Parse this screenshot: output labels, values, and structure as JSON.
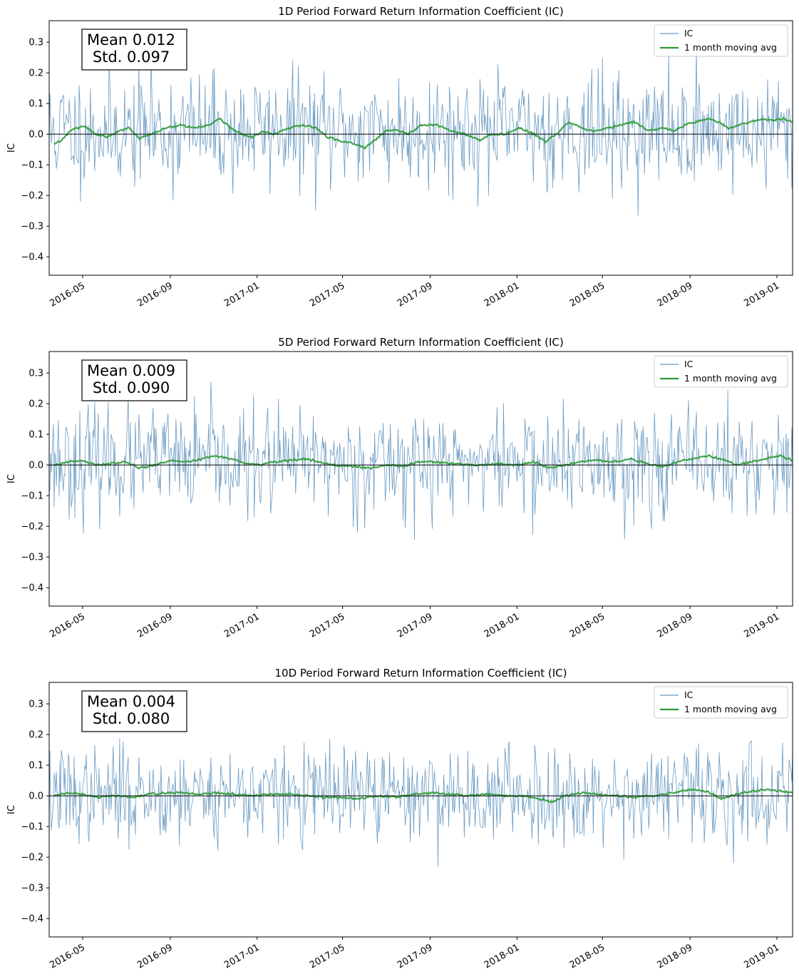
{
  "chart_data": [
    {
      "type": "line",
      "title": "1D Period Forward Return Information Coefficient (IC)",
      "ylabel": "IC",
      "xlabel": "",
      "x_range": [
        "2016-03-15",
        "2019-01-23"
      ],
      "ylim": [
        -0.46,
        0.37
      ],
      "yticks": [
        -0.4,
        -0.3,
        -0.2,
        -0.1,
        0.0,
        0.1,
        0.2,
        0.3
      ],
      "ytick_labels": [
        "−0.4",
        "−0.3",
        "−0.2",
        "−0.1",
        "0.0",
        "0.1",
        "0.2",
        "0.3"
      ],
      "xticks": [
        "2016-05-01",
        "2016-09-01",
        "2017-01-01",
        "2017-05-01",
        "2017-09-01",
        "2018-01-01",
        "2018-05-01",
        "2018-09-01",
        "2019-01-01"
      ],
      "xtick_labels": [
        "2016-05",
        "2016-09",
        "2017-01",
        "2017-05",
        "2017-09",
        "2018-01",
        "2018-05",
        "2018-09",
        "2019-01"
      ],
      "stats": {
        "line1": "Mean 0.012",
        "line2": "Std. 0.097"
      },
      "legend": {
        "position": "upper right",
        "entries": [
          "IC",
          "1 month moving avg"
        ]
      },
      "ic_seed": 11,
      "series": [
        {
          "name": "IC",
          "color": "#4682b4",
          "std": 0.097,
          "mean": 0.012
        },
        {
          "name": "1 month moving avg",
          "color": "#2e9a36",
          "values": [
            [
              "2016-03-22",
              -0.032
            ],
            [
              "2016-04-01",
              -0.02
            ],
            [
              "2016-04-15",
              0.015
            ],
            [
              "2016-05-05",
              0.025
            ],
            [
              "2016-05-20",
              0.0
            ],
            [
              "2016-06-05",
              -0.01
            ],
            [
              "2016-06-20",
              0.01
            ],
            [
              "2016-07-05",
              0.02
            ],
            [
              "2016-07-20",
              -0.015
            ],
            [
              "2016-08-05",
              0.0
            ],
            [
              "2016-08-25",
              0.02
            ],
            [
              "2016-09-15",
              0.03
            ],
            [
              "2016-10-05",
              0.02
            ],
            [
              "2016-10-25",
              0.03
            ],
            [
              "2016-11-10",
              0.05
            ],
            [
              "2016-11-25",
              0.02
            ],
            [
              "2016-12-10",
              0.0
            ],
            [
              "2016-12-25",
              -0.01
            ],
            [
              "2017-01-10",
              0.01
            ],
            [
              "2017-01-25",
              0.0
            ],
            [
              "2017-02-15",
              0.02
            ],
            [
              "2017-03-05",
              0.03
            ],
            [
              "2017-03-25",
              0.02
            ],
            [
              "2017-04-10",
              -0.01
            ],
            [
              "2017-04-25",
              -0.02
            ],
            [
              "2017-05-15",
              -0.03
            ],
            [
              "2017-06-01",
              -0.045
            ],
            [
              "2017-06-15",
              -0.02
            ],
            [
              "2017-07-01",
              0.01
            ],
            [
              "2017-07-15",
              0.015
            ],
            [
              "2017-08-01",
              0.0
            ],
            [
              "2017-08-20",
              0.03
            ],
            [
              "2017-09-10",
              0.03
            ],
            [
              "2017-10-01",
              0.01
            ],
            [
              "2017-10-20",
              0.0
            ],
            [
              "2017-11-10",
              -0.02
            ],
            [
              "2017-11-25",
              0.0
            ],
            [
              "2017-12-15",
              0.0
            ],
            [
              "2018-01-05",
              0.02
            ],
            [
              "2018-01-25",
              0.0
            ],
            [
              "2018-02-10",
              -0.025
            ],
            [
              "2018-02-25",
              0.0
            ],
            [
              "2018-03-15",
              0.04
            ],
            [
              "2018-04-01",
              0.02
            ],
            [
              "2018-04-20",
              0.01
            ],
            [
              "2018-05-10",
              0.02
            ],
            [
              "2018-05-25",
              0.03
            ],
            [
              "2018-06-15",
              0.04
            ],
            [
              "2018-07-05",
              0.01
            ],
            [
              "2018-07-25",
              0.02
            ],
            [
              "2018-08-10",
              0.01
            ],
            [
              "2018-08-25",
              0.03
            ],
            [
              "2018-09-10",
              0.04
            ],
            [
              "2018-09-25",
              0.05
            ],
            [
              "2018-10-10",
              0.04
            ],
            [
              "2018-10-25",
              0.02
            ],
            [
              "2018-11-10",
              0.03
            ],
            [
              "2018-11-25",
              0.04
            ],
            [
              "2018-12-10",
              0.05
            ],
            [
              "2018-12-25",
              0.045
            ],
            [
              "2019-01-10",
              0.05
            ],
            [
              "2019-01-23",
              0.04
            ]
          ]
        }
      ]
    },
    {
      "type": "line",
      "title": "5D Period Forward Return Information Coefficient (IC)",
      "ylabel": "IC",
      "xlabel": "",
      "x_range": [
        "2016-03-15",
        "2019-01-23"
      ],
      "ylim": [
        -0.46,
        0.37
      ],
      "yticks": [
        -0.4,
        -0.3,
        -0.2,
        -0.1,
        0.0,
        0.1,
        0.2,
        0.3
      ],
      "ytick_labels": [
        "−0.4",
        "−0.3",
        "−0.2",
        "−0.1",
        "0.0",
        "0.1",
        "0.2",
        "0.3"
      ],
      "xticks": [
        "2016-05-01",
        "2016-09-01",
        "2017-01-01",
        "2017-05-01",
        "2017-09-01",
        "2018-01-01",
        "2018-05-01",
        "2018-09-01",
        "2019-01-01"
      ],
      "xtick_labels": [
        "2016-05",
        "2016-09",
        "2017-01",
        "2017-05",
        "2017-09",
        "2018-01",
        "2018-05",
        "2018-09",
        "2019-01"
      ],
      "stats": {
        "line1": "Mean 0.009",
        "line2": "Std. 0.090"
      },
      "legend": {
        "position": "upper right",
        "entries": [
          "IC",
          "1 month moving avg"
        ]
      },
      "ic_seed": 23,
      "series": [
        {
          "name": "IC",
          "color": "#4682b4",
          "std": 0.09,
          "mean": 0.009
        },
        {
          "name": "1 month moving avg",
          "color": "#2e9a36",
          "values": [
            [
              "2016-03-22",
              0.0
            ],
            [
              "2016-04-10",
              0.01
            ],
            [
              "2016-05-01",
              0.015
            ],
            [
              "2016-05-20",
              0.0
            ],
            [
              "2016-06-10",
              0.005
            ],
            [
              "2016-07-01",
              0.01
            ],
            [
              "2016-07-20",
              -0.01
            ],
            [
              "2016-08-10",
              0.0
            ],
            [
              "2016-09-01",
              0.015
            ],
            [
              "2016-09-25",
              0.01
            ],
            [
              "2016-10-15",
              0.02
            ],
            [
              "2016-11-05",
              0.03
            ],
            [
              "2016-11-25",
              0.02
            ],
            [
              "2016-12-15",
              0.005
            ],
            [
              "2017-01-05",
              0.0
            ],
            [
              "2017-01-25",
              0.01
            ],
            [
              "2017-02-15",
              0.015
            ],
            [
              "2017-03-10",
              0.02
            ],
            [
              "2017-04-01",
              0.01
            ],
            [
              "2017-04-20",
              0.0
            ],
            [
              "2017-05-15",
              -0.005
            ],
            [
              "2017-06-10",
              -0.01
            ],
            [
              "2017-07-01",
              0.0
            ],
            [
              "2017-07-25",
              -0.005
            ],
            [
              "2017-08-15",
              0.01
            ],
            [
              "2017-09-05",
              0.01
            ],
            [
              "2017-10-01",
              0.005
            ],
            [
              "2017-10-25",
              0.0
            ],
            [
              "2017-11-15",
              0.0
            ],
            [
              "2017-12-10",
              0.005
            ],
            [
              "2018-01-01",
              0.0
            ],
            [
              "2018-01-25",
              0.01
            ],
            [
              "2018-02-15",
              -0.01
            ],
            [
              "2018-03-10",
              0.0
            ],
            [
              "2018-04-01",
              0.01
            ],
            [
              "2018-04-25",
              0.015
            ],
            [
              "2018-05-15",
              0.01
            ],
            [
              "2018-06-10",
              0.02
            ],
            [
              "2018-07-01",
              0.005
            ],
            [
              "2018-07-25",
              -0.005
            ],
            [
              "2018-08-15",
              0.01
            ],
            [
              "2018-09-05",
              0.02
            ],
            [
              "2018-09-25",
              0.03
            ],
            [
              "2018-10-15",
              0.02
            ],
            [
              "2018-11-05",
              0.0
            ],
            [
              "2018-11-25",
              0.01
            ],
            [
              "2018-12-15",
              0.02
            ],
            [
              "2019-01-05",
              0.03
            ],
            [
              "2019-01-23",
              0.015
            ]
          ]
        }
      ]
    },
    {
      "type": "line",
      "title": "10D Period Forward Return Information Coefficient (IC)",
      "ylabel": "IC",
      "xlabel": "",
      "x_range": [
        "2016-03-15",
        "2019-01-23"
      ],
      "ylim": [
        -0.46,
        0.37
      ],
      "yticks": [
        -0.4,
        -0.3,
        -0.2,
        -0.1,
        0.0,
        0.1,
        0.2,
        0.3
      ],
      "ytick_labels": [
        "−0.4",
        "−0.3",
        "−0.2",
        "−0.1",
        "0.0",
        "0.1",
        "0.2",
        "0.3"
      ],
      "xticks": [
        "2016-05-01",
        "2016-09-01",
        "2017-01-01",
        "2017-05-01",
        "2017-09-01",
        "2018-01-01",
        "2018-05-01",
        "2018-09-01",
        "2019-01-01"
      ],
      "xtick_labels": [
        "2016-05",
        "2016-09",
        "2017-01",
        "2017-05",
        "2017-09",
        "2018-01",
        "2018-05",
        "2018-09",
        "2019-01"
      ],
      "stats": {
        "line1": "Mean 0.004",
        "line2": "Std. 0.080"
      },
      "legend": {
        "position": "upper right",
        "entries": [
          "IC",
          "1 month moving avg"
        ]
      },
      "ic_seed": 37,
      "series": [
        {
          "name": "IC",
          "color": "#4682b4",
          "std": 0.08,
          "mean": 0.004
        },
        {
          "name": "1 month moving avg",
          "color": "#2e9a36",
          "values": [
            [
              "2016-03-22",
              0.0
            ],
            [
              "2016-04-10",
              0.01
            ],
            [
              "2016-05-01",
              0.005
            ],
            [
              "2016-05-25",
              -0.005
            ],
            [
              "2016-06-15",
              0.0
            ],
            [
              "2016-07-10",
              -0.005
            ],
            [
              "2016-08-01",
              0.005
            ],
            [
              "2016-08-25",
              0.01
            ],
            [
              "2016-09-20",
              0.01
            ],
            [
              "2016-10-15",
              0.005
            ],
            [
              "2016-11-05",
              0.01
            ],
            [
              "2016-12-01",
              0.005
            ],
            [
              "2016-12-25",
              0.0
            ],
            [
              "2017-01-20",
              0.005
            ],
            [
              "2017-02-15",
              0.005
            ],
            [
              "2017-03-10",
              0.0
            ],
            [
              "2017-04-05",
              -0.005
            ],
            [
              "2017-05-01",
              -0.005
            ],
            [
              "2017-05-25",
              -0.01
            ],
            [
              "2017-06-20",
              0.0
            ],
            [
              "2017-07-15",
              -0.005
            ],
            [
              "2017-08-10",
              0.005
            ],
            [
              "2017-09-05",
              0.01
            ],
            [
              "2017-10-01",
              0.005
            ],
            [
              "2017-10-25",
              0.0
            ],
            [
              "2017-11-20",
              0.005
            ],
            [
              "2017-12-15",
              0.0
            ],
            [
              "2018-01-10",
              0.0
            ],
            [
              "2018-02-01",
              -0.01
            ],
            [
              "2018-02-20",
              -0.02
            ],
            [
              "2018-03-10",
              0.0
            ],
            [
              "2018-04-01",
              0.01
            ],
            [
              "2018-04-25",
              0.005
            ],
            [
              "2018-05-20",
              0.0
            ],
            [
              "2018-06-15",
              -0.005
            ],
            [
              "2018-07-10",
              0.0
            ],
            [
              "2018-08-05",
              0.01
            ],
            [
              "2018-09-01",
              0.02
            ],
            [
              "2018-09-25",
              0.015
            ],
            [
              "2018-10-15",
              -0.01
            ],
            [
              "2018-11-05",
              0.005
            ],
            [
              "2018-11-25",
              0.015
            ],
            [
              "2018-12-15",
              0.02
            ],
            [
              "2019-01-10",
              0.015
            ],
            [
              "2019-01-23",
              0.01
            ]
          ]
        }
      ]
    }
  ]
}
